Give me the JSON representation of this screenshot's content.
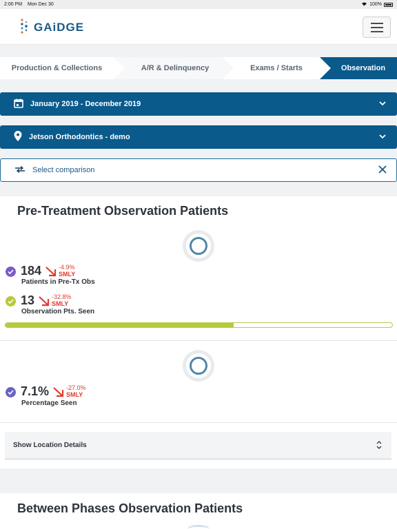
{
  "status_bar": {
    "time": "2:00 PM",
    "date": "Mon Dec 30",
    "battery": "100%"
  },
  "app": {
    "brand": "GAiDGE"
  },
  "stepper": {
    "steps": [
      {
        "label": "Production & Collections",
        "active": false
      },
      {
        "label": "A/R & Delinquency",
        "active": false
      },
      {
        "label": "Exams / Starts",
        "active": false
      },
      {
        "label": "Observation",
        "active": true
      }
    ]
  },
  "filters": {
    "date_range": {
      "label": "January 2019 - December 2019",
      "icon": "calendar-icon"
    },
    "location": {
      "label": "Jetson Orthodontics - demo",
      "icon": "map-pin-icon"
    },
    "comparison": {
      "label": "Select comparison",
      "icon": "swap-arrows-icon"
    }
  },
  "colors": {
    "brand_blue": "#0a5a8c",
    "purple": "#7a5cc7",
    "lime": "#b8c93a",
    "negative": "#e0392f"
  },
  "pre_treatment": {
    "title": "Pre-Treatment Observation Patients",
    "metrics": [
      {
        "value": "184",
        "delta": "-4.9%",
        "compare": "SMLY",
        "label": "Patients in Pre-Tx Obs",
        "color": "purple"
      },
      {
        "value": "13",
        "delta": "-32.8%",
        "compare": "SMLY",
        "label": "Observation Pts. Seen",
        "color": "lime"
      }
    ],
    "progress_fraction": 0.59,
    "percentage": {
      "value": "7.1%",
      "delta": "-27.0%",
      "compare": "SMLY",
      "label": "Percentage Seen"
    },
    "location_details": "Show Location Details"
  },
  "between_phases": {
    "title": "Between Phases Observation Patients"
  }
}
